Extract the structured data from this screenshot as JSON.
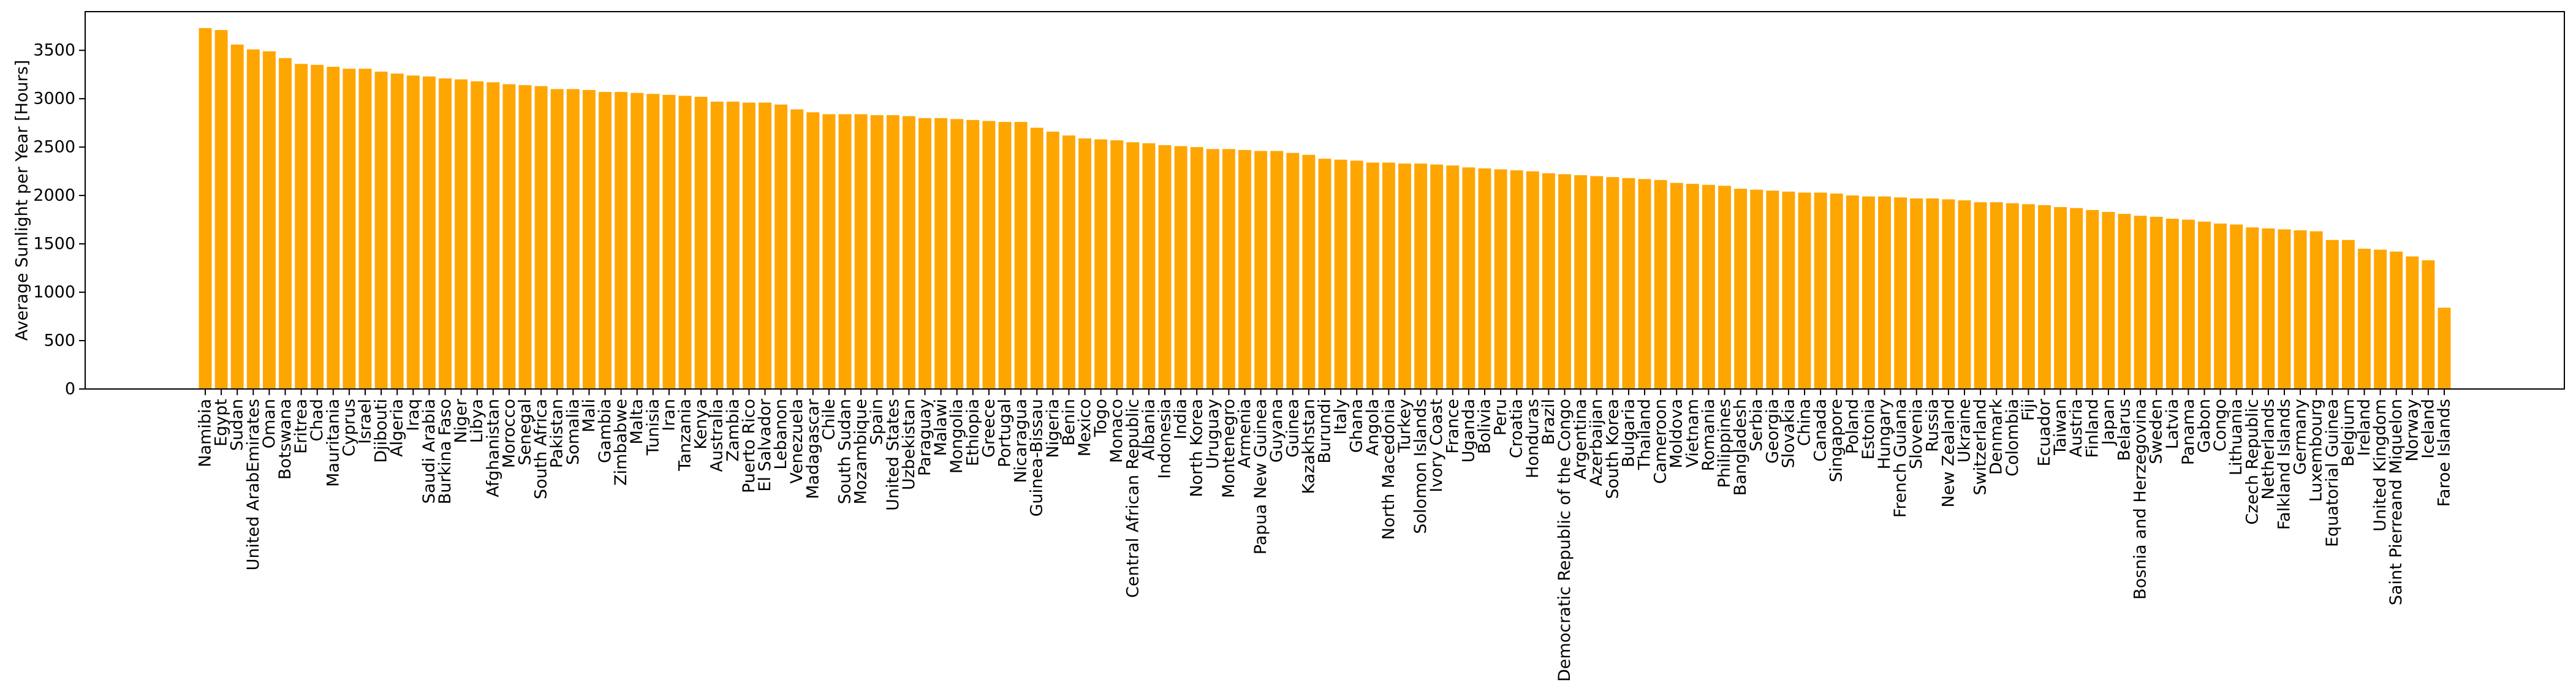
{
  "chart_data": {
    "type": "bar",
    "ylabel": "Average Sunlight per Year [Hours]",
    "color": "#ffa500",
    "ylim": [
      0,
      3900
    ],
    "yticks": [
      0,
      500,
      1000,
      1500,
      2000,
      2500,
      3000,
      3500
    ],
    "categories": [
      "Namibia",
      "Egypt",
      "Sudan",
      "United ArabEmirates",
      "Oman",
      "Botswana",
      "Eritrea",
      "Chad",
      "Mauritania",
      "Cyprus",
      "Israel",
      "Djibouti",
      "Algeria",
      "Iraq",
      "Saudi Arabia",
      "Burkina Faso",
      "Niger",
      "Libya",
      "Afghanistan",
      "Morocco",
      "Senegal",
      "South Africa",
      "Pakistan",
      "Somalia",
      "Mali",
      "Gambia",
      "Zimbabwe",
      "Malta",
      "Tunisia",
      "Iran",
      "Tanzania",
      "Kenya",
      "Australia",
      "Zambia",
      "Puerto Rico",
      "El Salvador",
      "Lebanon",
      "Venezuela",
      "Madagascar",
      "Chile",
      "South Sudan",
      "Mozambique",
      "Spain",
      "United States",
      "Uzbekistan",
      "Paraguay",
      "Malawi",
      "Mongolia",
      "Ethiopia",
      "Greece",
      "Portugal",
      "Nicaragua",
      "Guinea-Bissau",
      "Nigeria",
      "Benin",
      "Mexico",
      "Togo",
      "Monaco",
      "Central African Republic",
      "Albania",
      "Indonesia",
      "India",
      "North Korea",
      "Uruguay",
      "Montenegro",
      "Armenia",
      "Papua New Guinea",
      "Guyana",
      "Guinea",
      "Kazakhstan",
      "Burundi",
      "Italy",
      "Ghana",
      "Angola",
      "North Macedonia",
      "Turkey",
      "Solomon Islands",
      "Ivory Coast",
      "France",
      "Uganda",
      "Bolivia",
      "Peru",
      "Croatia",
      "Honduras",
      "Brazil",
      "Democratic Republic of the Congo",
      "Argentina",
      "Azerbaijan",
      "South Korea",
      "Bulgaria",
      "Thailand",
      "Cameroon",
      "Moldova",
      "Vietnam",
      "Romania",
      "Philippines",
      "Bangladesh",
      "Serbia",
      "Georgia",
      "Slovakia",
      "China",
      "Canada",
      "Singapore",
      "Poland",
      "Estonia",
      "Hungary",
      "French Guiana",
      "Slovenia",
      "Russia",
      "New Zealand",
      "Ukraine",
      "Switzerland",
      "Denmark",
      "Colombia",
      "Fiji",
      "Ecuador",
      "Taiwan",
      "Austria",
      "Finland",
      "Japan",
      "Belarus",
      "Bosnia and Herzegovina",
      "Sweden",
      "Latvia",
      "Panama",
      "Gabon",
      "Congo",
      "Lithuania",
      "Czech Republic",
      "Netherlands",
      "Falkland Islands",
      "Germany",
      "Luxembourg",
      "Equatorial Guinea",
      "Belgium",
      "Ireland",
      "United Kingdom",
      "Saint Pierreand Miquelon",
      "Norway",
      "Iceland",
      "Faroe Islands"
    ],
    "values": [
      3730,
      3710,
      3560,
      3510,
      3490,
      3420,
      3360,
      3350,
      3330,
      3310,
      3310,
      3280,
      3260,
      3240,
      3230,
      3210,
      3200,
      3180,
      3170,
      3150,
      3140,
      3130,
      3100,
      3100,
      3090,
      3070,
      3070,
      3060,
      3050,
      3040,
      3030,
      3020,
      2970,
      2970,
      2960,
      2960,
      2940,
      2890,
      2860,
      2840,
      2840,
      2840,
      2830,
      2830,
      2820,
      2800,
      2800,
      2790,
      2780,
      2770,
      2760,
      2760,
      2700,
      2660,
      2620,
      2590,
      2580,
      2570,
      2550,
      2540,
      2520,
      2510,
      2500,
      2480,
      2480,
      2470,
      2460,
      2460,
      2440,
      2420,
      2380,
      2370,
      2360,
      2340,
      2340,
      2330,
      2330,
      2320,
      2310,
      2290,
      2280,
      2270,
      2260,
      2250,
      2230,
      2220,
      2210,
      2200,
      2190,
      2180,
      2170,
      2160,
      2130,
      2120,
      2110,
      2100,
      2070,
      2060,
      2050,
      2040,
      2030,
      2030,
      2020,
      2000,
      1990,
      1990,
      1980,
      1970,
      1970,
      1960,
      1950,
      1930,
      1930,
      1920,
      1910,
      1900,
      1880,
      1870,
      1850,
      1830,
      1810,
      1790,
      1780,
      1760,
      1750,
      1730,
      1710,
      1700,
      1670,
      1660,
      1650,
      1640,
      1630,
      1540,
      1540,
      1450,
      1440,
      1420,
      1370,
      1330,
      840
    ]
  }
}
